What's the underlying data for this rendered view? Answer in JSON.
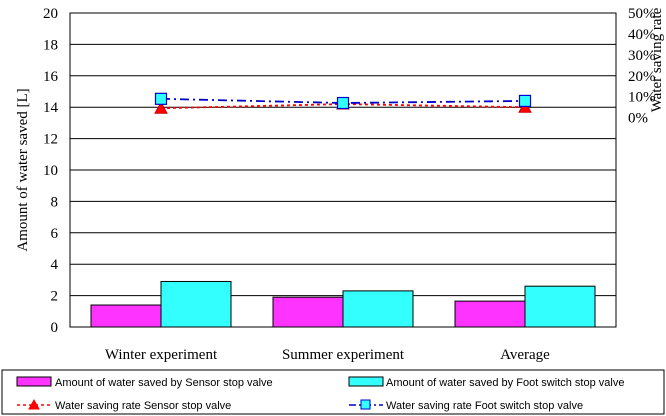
{
  "chart_data": {
    "type": "bar",
    "categories": [
      "Winter experiment",
      "Summer experiment",
      "Average"
    ],
    "ylabel_left": "Amount of water saved [L]",
    "ylabel_right": "Water saving rate",
    "ylim_left": [
      0,
      20
    ],
    "yticks_left": [
      "0",
      "2",
      "4",
      "6",
      "8",
      "10",
      "12",
      "14",
      "16",
      "18",
      "20"
    ],
    "ylim_right": [
      -100,
      50
    ],
    "yticks_right": [
      "0%",
      "10%",
      "20%",
      "30%",
      "40%",
      "50%"
    ],
    "grid": true,
    "legend_position": "bottom",
    "bar_series": [
      {
        "name": "Amount of water saved by Sensor stop valve",
        "values": [
          1.4,
          1.9,
          1.65
        ],
        "color": "#ff33ff"
      },
      {
        "name": "Amount of water saved by Foot switch stop valve",
        "values": [
          2.9,
          2.3,
          2.6
        ],
        "color": "#33ffff"
      }
    ],
    "line_series": [
      {
        "name": "Water saving rate Sensor stop valve",
        "values": [
          4.5,
          6.5,
          5.0
        ],
        "color": "#ff0000",
        "marker": "triangle"
      },
      {
        "name": "Water saving rate Foot switch stop valve",
        "values": [
          9.0,
          7.0,
          8.0
        ],
        "color": "#0000cc",
        "marker": "square"
      }
    ]
  }
}
